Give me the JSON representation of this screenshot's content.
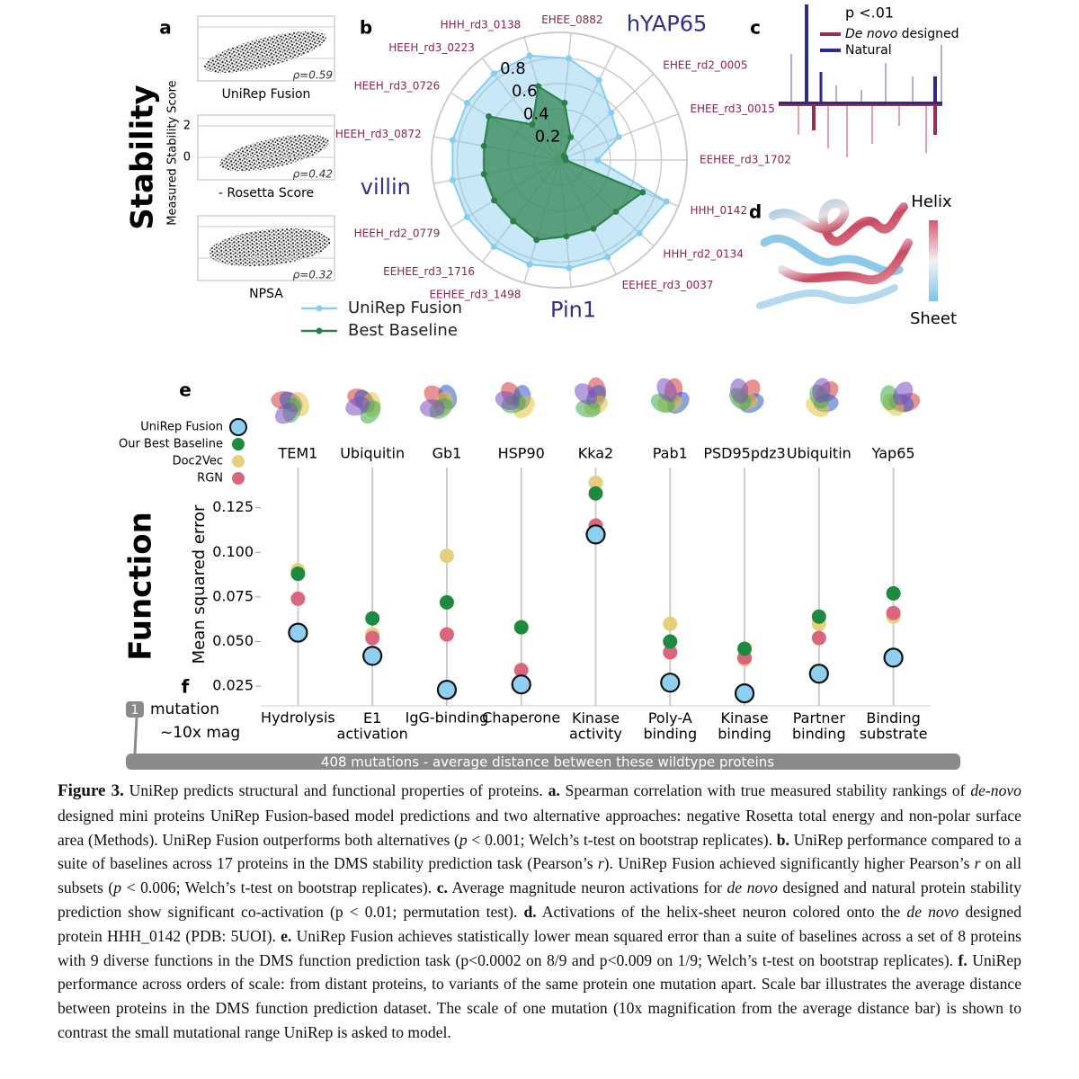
{
  "panel_a": {
    "label": "a",
    "section": "Stability",
    "ylabel": "Measured Stability Score",
    "ylim": [
      -1.43,
      2.69
    ],
    "yticks": [
      2,
      0
    ],
    "plots": [
      {
        "xlabel": "UniRep Fusion",
        "rho": "ρ=0.59"
      },
      {
        "xlabel": "- Rosetta Score",
        "rho": "ρ=0.42"
      },
      {
        "xlabel": "NPSA",
        "rho": "ρ=0.32"
      }
    ]
  },
  "panel_c": {
    "label": "c",
    "annotation": "p <.01",
    "legend": [
      {
        "name_italic": "De novo",
        "name": "designed",
        "color": "#9b2c5a"
      },
      {
        "name": "Natural",
        "color": "#2d2a8c"
      }
    ]
  },
  "panel_d": {
    "label": "d",
    "high": "Helix",
    "low": "Sheet"
  },
  "chart_data": [
    {
      "type": "radar",
      "label": "b",
      "categories": [
        "HHH_rd3_0138",
        "EHEE_0882",
        "hYAP65",
        "EHEE_rd2_0005",
        "EHEE_rd3_0015",
        "EEHEE_rd3_1702",
        "HHH_0142",
        "HHH_rd2_0134",
        "EEHEE_rd3_0037",
        "Pin1",
        "EEHEE_rd3_1498",
        "EEHEE_rd3_1716",
        "HEEH_rd2_0779",
        "villin",
        "HEEH_rd3_0872",
        "HEEH_rd3_0726",
        "HEEH_rd3_0223"
      ],
      "series": [
        {
          "name": "UniRep Fusion",
          "color": "#87cdee",
          "values": [
            0.85,
            0.8,
            0.7,
            0.55,
            0.5,
            0.3,
            0.9,
            0.85,
            0.85,
            0.85,
            0.85,
            0.85,
            0.85,
            0.85,
            0.85,
            0.85,
            0.85
          ]
        },
        {
          "name": "Best Baseline",
          "color": "#2a8048",
          "values": [
            0.6,
            0.45,
            0.2,
            0.05,
            0.05,
            0.05,
            0.7,
            0.6,
            0.6,
            0.6,
            0.65,
            0.6,
            0.6,
            0.6,
            0.6,
            0.65,
            0.35
          ]
        }
      ],
      "rlim": [
        0,
        1
      ],
      "rticks": [
        0.2,
        0.4,
        0.6,
        0.8
      ]
    },
    {
      "type": "dot",
      "label": "e",
      "section": "Function",
      "ylabel": "Mean squared error",
      "proteins": [
        "TEM1",
        "Ubiquitin",
        "Gb1",
        "HSP90",
        "Kka2",
        "Pab1",
        "PSD95pdz3",
        "Ubiquitin",
        "Yap65"
      ],
      "categories": [
        "Hydrolysis",
        "E1\nactivation",
        "IgG-binding",
        "Chaperone",
        "Kinase\nactivity",
        "Poly-A\nbinding",
        "Kinase\nbinding",
        "Partner\nbinding",
        "Binding\nsubstrate"
      ],
      "series": [
        {
          "name": "Doc2Vec",
          "color": "#e6cf7a",
          "values": [
            0.09,
            0.054,
            0.098,
            0.058,
            0.139,
            0.06,
            0.04,
            0.06,
            0.064
          ]
        },
        {
          "name": "RGN",
          "color": "#d9667a",
          "values": [
            0.074,
            0.052,
            0.054,
            0.034,
            0.115,
            0.044,
            0.041,
            0.052,
            0.066
          ]
        },
        {
          "name": "Our Best Baseline",
          "color": "#1e8a3e",
          "values": [
            0.088,
            0.063,
            0.072,
            0.058,
            0.133,
            0.05,
            0.046,
            0.064,
            0.077
          ]
        },
        {
          "name": "UniRep Fusion",
          "color": "#8fd0f0",
          "values": [
            0.055,
            0.042,
            0.023,
            0.026,
            0.11,
            0.027,
            0.021,
            0.032,
            0.041
          ]
        }
      ],
      "ylim": [
        0.014,
        0.15
      ],
      "yticks": [
        {
          "value": 0.025,
          "label": "0.025"
        },
        {
          "value": 0.05,
          "label": "0.050"
        },
        {
          "value": 0.075,
          "label": "0.075"
        },
        {
          "value": 0.1,
          "label": "0.100"
        },
        {
          "value": 0.125,
          "label": "0.125"
        }
      ],
      "grid": true
    }
  ],
  "panel_f": {
    "label": "f",
    "badge": "1",
    "unit": "mutation",
    "magnification": "~10x mag",
    "bar": "408 mutations - average distance between these wildtype proteins"
  },
  "caption": {
    "parts": [
      {
        "text": "Figure 3.",
        "style": "bold"
      },
      {
        "text": " UniRep predicts structural and functional properties of proteins. "
      },
      {
        "text": "a.",
        "style": "bold"
      },
      {
        "text": " Spearman correlation with true measured stability rankings of "
      },
      {
        "text": "de-novo",
        "style": "italic"
      },
      {
        "text": " designed mini proteins UniRep Fusion-based model predictions and two alternative approaches: negative Rosetta total energy and non-polar surface area (Methods). UniRep Fusion outperforms both alternatives ("
      },
      {
        "text": "p",
        "style": "italic"
      },
      {
        "text": " < 0.001; Welch’s t-test on bootstrap replicates). "
      },
      {
        "text": "b.",
        "style": "bold"
      },
      {
        "text": " UniRep performance compared to a suite of baselines across 17 proteins in the DMS stability prediction task (Pearson’s "
      },
      {
        "text": "r",
        "style": "italic"
      },
      {
        "text": "). UniRep Fusion achieved significantly higher Pearson’s "
      },
      {
        "text": "r",
        "style": "italic"
      },
      {
        "text": "  on all subsets ("
      },
      {
        "text": "p",
        "style": "italic"
      },
      {
        "text": " < 0.006; Welch’s t-test on bootstrap replicates). "
      },
      {
        "text": "c.",
        "style": "bold"
      },
      {
        "text": " Average magnitude neuron activations for "
      },
      {
        "text": "de novo",
        "style": "italic"
      },
      {
        "text": " designed and natural protein stability prediction show significant co-activation (p < 0.01; permutation test). "
      },
      {
        "text": "d.",
        "style": "bold"
      },
      {
        "text": " Activations of the helix-sheet neuron colored onto the "
      },
      {
        "text": "de novo",
        "style": "italic"
      },
      {
        "text": " designed protein HHH_0142 (PDB: 5UOI). "
      },
      {
        "text": "e.",
        "style": "bold"
      },
      {
        "text": " UniRep Fusion achieves statistically lower mean squared error than a suite of baselines across a set of 8 proteins with 9 diverse functions in the DMS function prediction task (p<0.0002 on 8/9 and p<0.009 on 1/9; Welch’s t-test on bootstrap replicates). "
      },
      {
        "text": "f.",
        "style": "bold"
      },
      {
        "text": " UniRep performance across orders of scale: from distant proteins, to variants of the same protein one mutation apart. Scale bar illustrates the average distance between proteins in the DMS function prediction dataset. The scale of one mutation (10x magnification from the average distance bar) is shown to contrast the small mutational range UniRep is asked to model."
      }
    ]
  }
}
